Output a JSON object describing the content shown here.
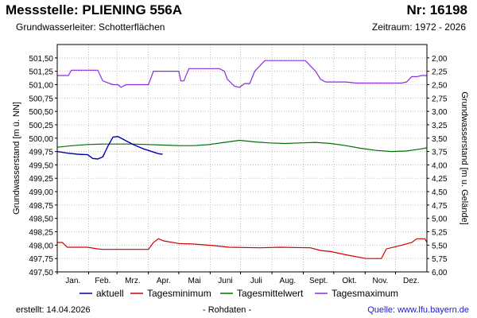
{
  "header": {
    "title": "Messstelle: PLIENING 556A",
    "nr": "Nr: 16198",
    "aquifer": "Grundwasserleiter:   Schotterflächen",
    "period": "Zeitraum: 1972 - 2026"
  },
  "footer": {
    "created": "erstellt:  14.04.2026",
    "raw": "- Rohdaten -",
    "source": "Quelle: www.lfu.bayern.de"
  },
  "colors": {
    "aktuell": "#0000b0",
    "min": "#d00000",
    "mittel": "#007000",
    "max": "#8a2be2",
    "grid": "#bfbfbf"
  },
  "chart_data": {
    "type": "line",
    "title": "",
    "ylabel": "Grundwasserstand [m ü. NN]",
    "ylabel_right": "Grundwasserstand [m u. Gelände]",
    "ylim": [
      497.5,
      501.75
    ],
    "ylim_right": [
      6.0,
      1.75
    ],
    "xlim": [
      0,
      365
    ],
    "grid": true,
    "legend_position": "bottom",
    "y_ticks": [
      "497,50",
      "497,75",
      "498,00",
      "498,25",
      "498,50",
      "498,75",
      "499,00",
      "499,25",
      "499,50",
      "499,75",
      "500,00",
      "500,25",
      "500,50",
      "500,75",
      "501,00",
      "501,25",
      "501,50"
    ],
    "y_right_ticks": [
      "6,00",
      "5,75",
      "5,50",
      "5,25",
      "5,00",
      "4,75",
      "4,50",
      "4,25",
      "4,00",
      "3,75",
      "3,50",
      "3,25",
      "3,00",
      "2,75",
      "2,50",
      "2,25",
      "2,00"
    ],
    "months": [
      "Jan.",
      "Feb.",
      "Mrz.",
      "Apr.",
      "Mai",
      "Juni",
      "Juli",
      "Aug.",
      "Sept.",
      "Okt.",
      "Nov.",
      "Dez."
    ],
    "series": [
      {
        "name": "aktuell",
        "x": [
          0,
          10,
          20,
          30,
          35,
          40,
          45,
          50,
          55,
          60,
          65,
          70,
          75,
          80,
          85,
          90,
          95,
          100,
          104
        ],
        "y": [
          499.75,
          499.72,
          499.7,
          499.69,
          499.62,
          499.61,
          499.65,
          499.85,
          500.02,
          500.03,
          499.98,
          499.93,
          499.88,
          499.84,
          499.8,
          499.77,
          499.74,
          499.71,
          499.7
        ]
      },
      {
        "name": "Tagesminimum",
        "x": [
          0,
          5,
          10,
          30,
          40,
          45,
          60,
          75,
          90,
          95,
          100,
          105,
          120,
          135,
          155,
          170,
          200,
          220,
          250,
          260,
          270,
          285,
          305,
          320,
          325,
          340,
          350,
          355,
          363,
          365
        ],
        "y": [
          498.05,
          498.05,
          497.96,
          497.96,
          497.93,
          497.92,
          497.92,
          497.92,
          497.92,
          498.05,
          498.12,
          498.08,
          498.03,
          498.02,
          497.99,
          497.96,
          497.95,
          497.96,
          497.95,
          497.9,
          497.88,
          497.82,
          497.75,
          497.75,
          497.93,
          498.0,
          498.05,
          498.12,
          498.12,
          498.05
        ]
      },
      {
        "name": "Tagesmittelwert",
        "x": [
          0,
          15,
          30,
          45,
          60,
          75,
          90,
          105,
          120,
          135,
          150,
          165,
          180,
          195,
          210,
          225,
          240,
          255,
          270,
          285,
          300,
          315,
          330,
          345,
          360,
          365
        ],
        "y": [
          499.83,
          499.86,
          499.88,
          499.89,
          499.89,
          499.89,
          499.88,
          499.87,
          499.86,
          499.86,
          499.88,
          499.92,
          499.96,
          499.93,
          499.91,
          499.9,
          499.91,
          499.92,
          499.9,
          499.86,
          499.81,
          499.77,
          499.75,
          499.76,
          499.8,
          499.82
        ]
      },
      {
        "name": "Tagesmaximum",
        "x": [
          0,
          4,
          8,
          11,
          14,
          25,
          35,
          40,
          45,
          55,
          60,
          63,
          68,
          75,
          85,
          90,
          95,
          120,
          122,
          125,
          130,
          145,
          160,
          165,
          168,
          175,
          180,
          185,
          190,
          195,
          205,
          210,
          230,
          245,
          250,
          255,
          260,
          265,
          270,
          285,
          295,
          320,
          335,
          340,
          345,
          350,
          355,
          360,
          365
        ],
        "y": [
          501.17,
          501.17,
          501.17,
          501.17,
          501.27,
          501.27,
          501.27,
          501.27,
          501.07,
          501.0,
          501.0,
          500.95,
          501.0,
          501.0,
          501.0,
          501.0,
          501.25,
          501.25,
          501.07,
          501.07,
          501.3,
          501.3,
          501.3,
          501.25,
          501.1,
          500.97,
          500.95,
          501.02,
          501.02,
          501.25,
          501.45,
          501.45,
          501.45,
          501.45,
          501.35,
          501.25,
          501.1,
          501.05,
          501.05,
          501.05,
          501.03,
          501.03,
          501.03,
          501.03,
          501.05,
          501.15,
          501.15,
          501.17,
          501.17
        ]
      }
    ]
  }
}
